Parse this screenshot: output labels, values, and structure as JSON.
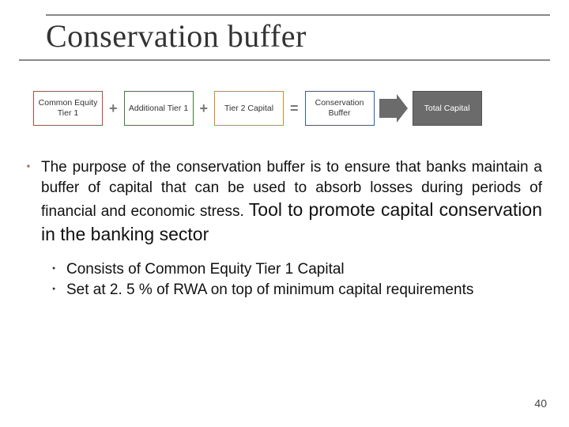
{
  "title": "Conservation buffer",
  "flow": {
    "boxes": [
      {
        "label": "Common Equity Tier 1",
        "border": "#c94040",
        "bg": "#ffffff",
        "color": "#333333"
      },
      {
        "label": "Additional Tier 1",
        "border": "#3a7d3a",
        "bg": "#ffffff",
        "color": "#333333"
      },
      {
        "label": "Tier 2 Capital",
        "border": "#d18b1a",
        "bg": "#ffffff",
        "color": "#333333"
      },
      {
        "label": "Conservation Buffer",
        "border": "#2b5fa8",
        "bg": "#ffffff",
        "color": "#333333"
      },
      {
        "label": "Total Capital",
        "border": "#505050",
        "bg": "#6b6b6b",
        "color": "#ffffff"
      }
    ],
    "op_plus": "+",
    "op_eq": "=",
    "op_color": "#777777",
    "pointer_color": "#6b6b6b"
  },
  "bullet_main_text": "The purpose of the conservation buffer is to ensure that banks maintain a buffer of capital that can be used to absorb losses during periods of financial and economic stress. ",
  "bullet_main_tool": "Tool to promote capital conservation in the banking sector",
  "sub_bullets": [
    "Consists of Common Equity Tier 1 Capital",
    "Set at 2. 5 % of RWA on top of minimum capital requirements"
  ],
  "page_number": "40"
}
